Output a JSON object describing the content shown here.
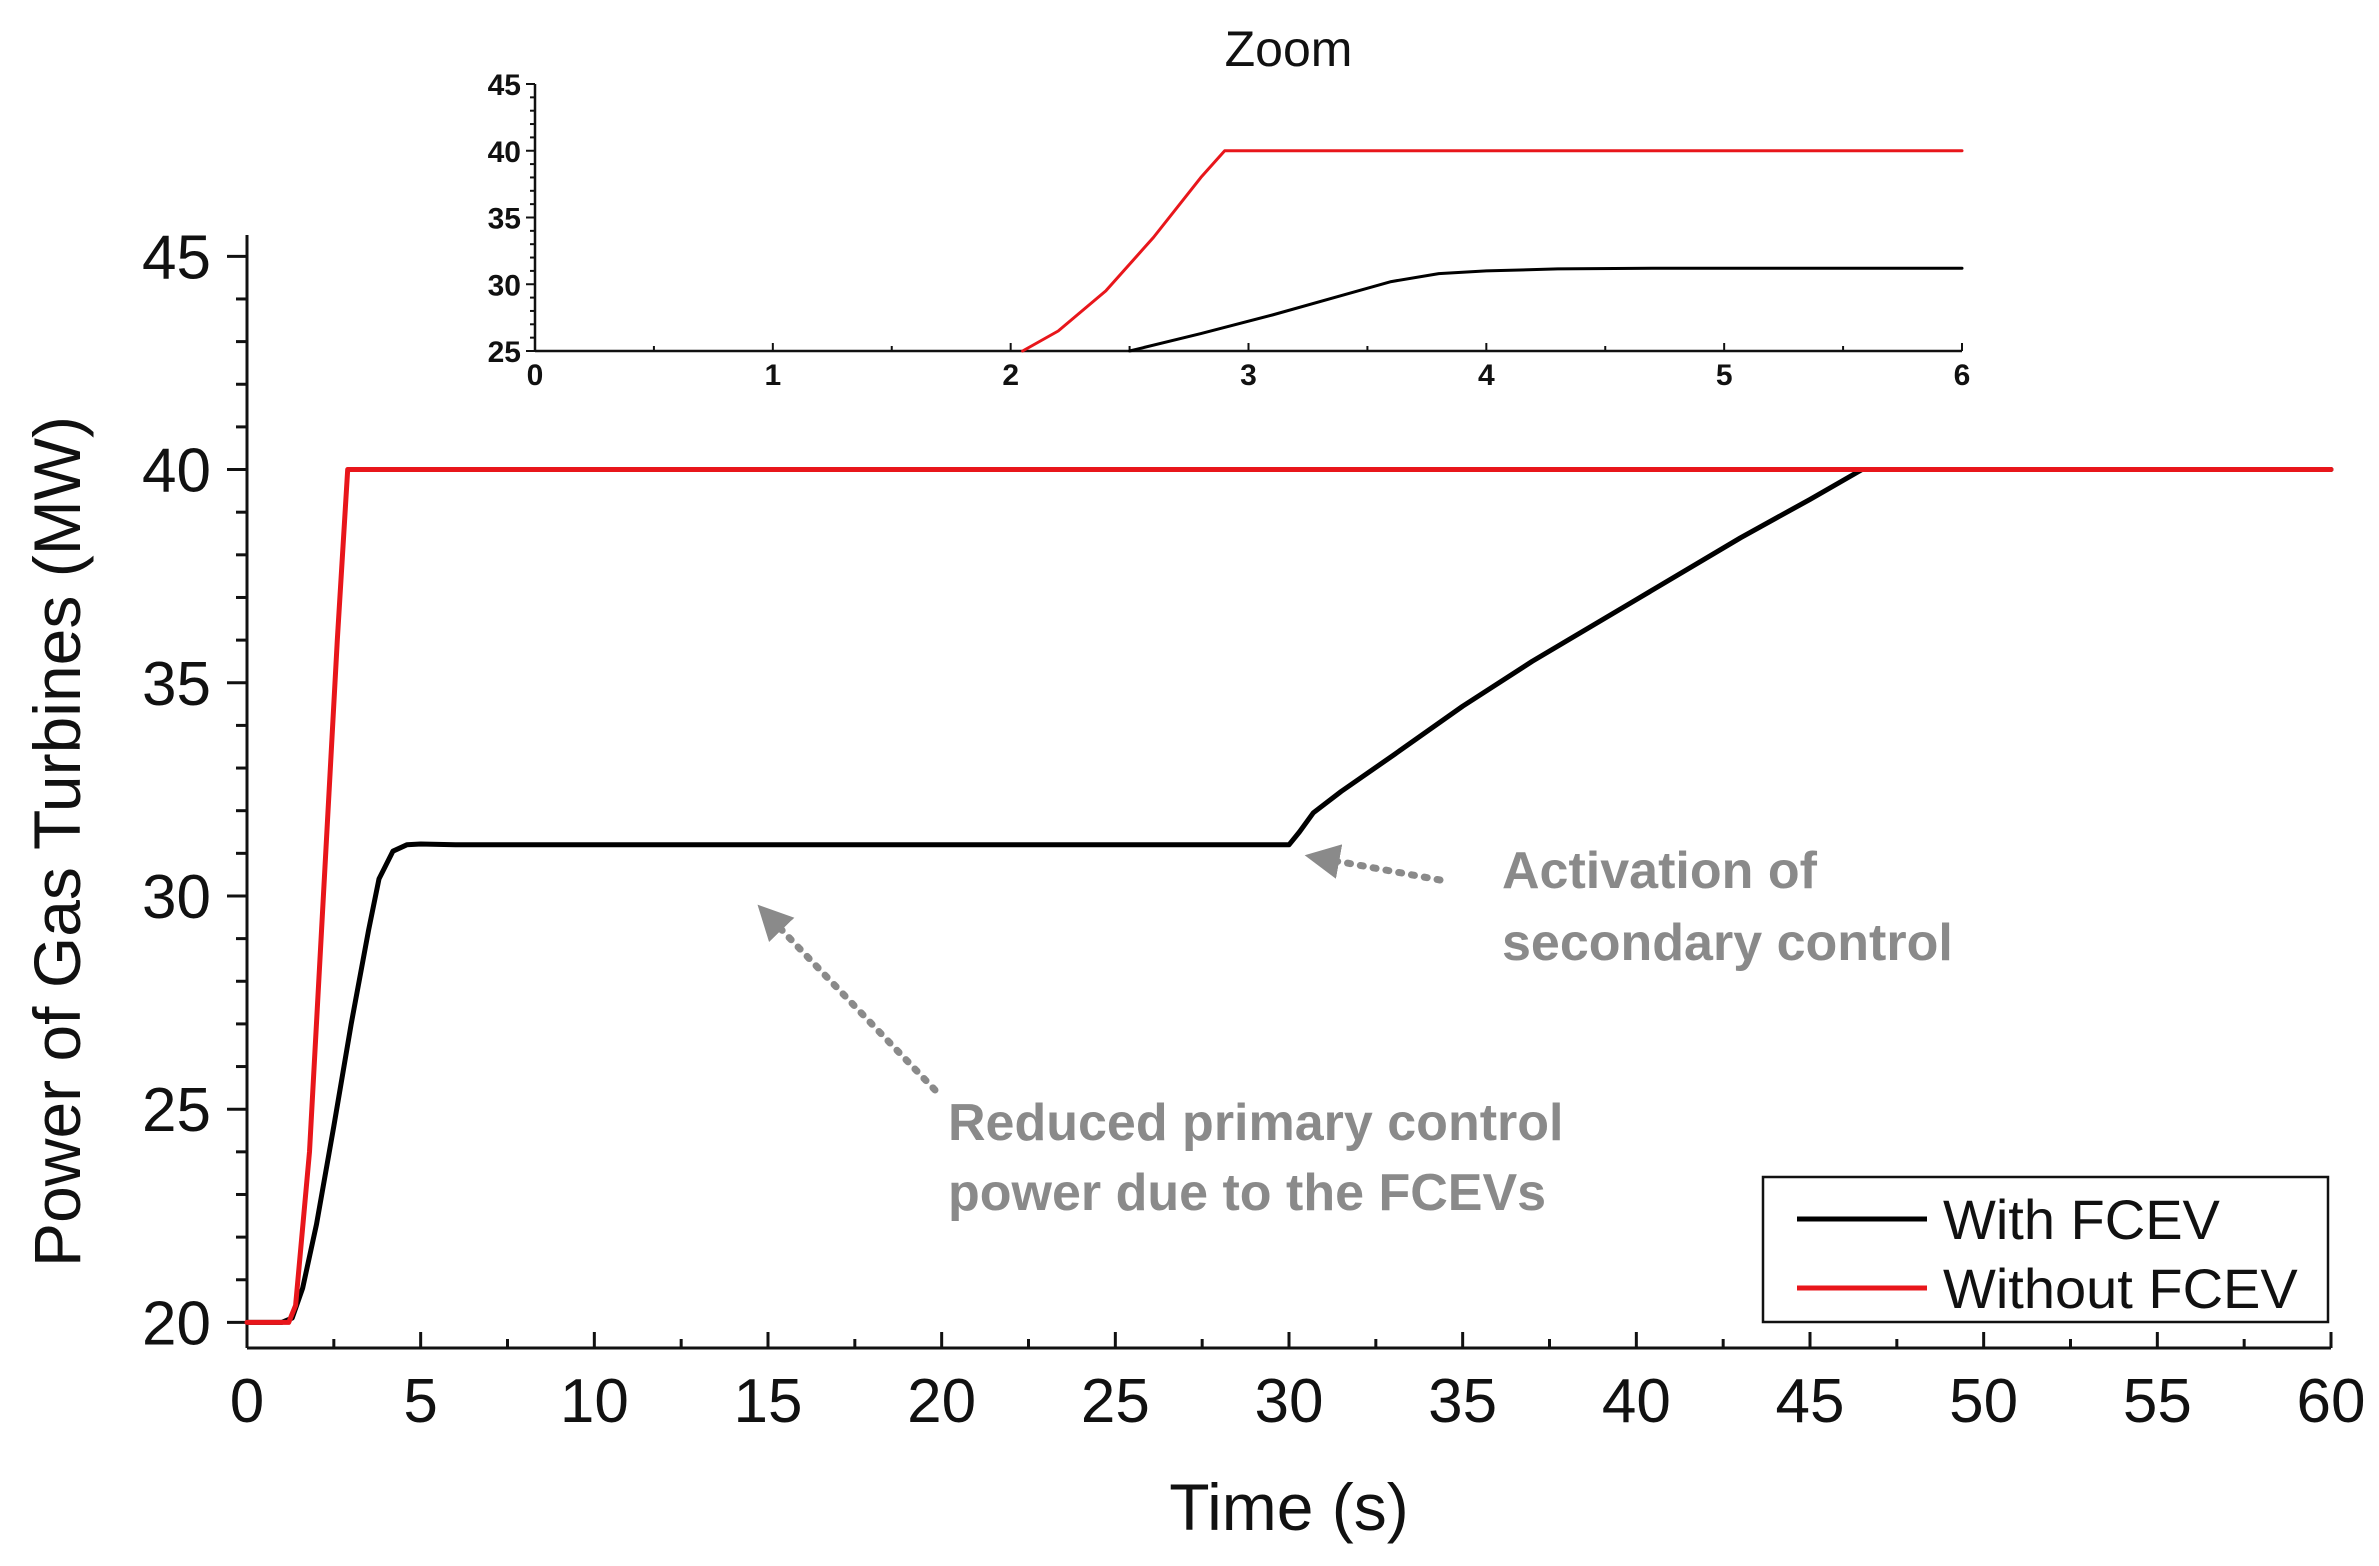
{
  "chart_data": [
    {
      "type": "line",
      "title": "",
      "xlabel": "Time (s)",
      "ylabel": "Power of Gas Turbines (MW)",
      "xlim": [
        0,
        60
      ],
      "ylim": [
        19.4,
        45.5
      ],
      "xticks": [
        0,
        5,
        10,
        15,
        20,
        25,
        30,
        35,
        40,
        45,
        50,
        55,
        60
      ],
      "yticks": [
        20,
        25,
        30,
        35,
        40,
        45
      ],
      "legend": {
        "position": "bottom-right",
        "entries": [
          "With FCEV",
          "Without FCEV"
        ]
      },
      "series": [
        {
          "name": "With FCEV",
          "color": "#000000",
          "x": [
            0,
            1.0,
            1.3,
            1.6,
            2.0,
            2.5,
            3.0,
            3.5,
            3.8,
            4.2,
            4.6,
            5.0,
            6.0,
            10,
            15,
            20,
            25,
            29,
            30.0,
            30.3,
            30.7,
            31.5,
            33,
            35,
            37,
            40,
            43,
            45,
            46.5,
            60
          ],
          "y": [
            20,
            20,
            20.1,
            20.8,
            22.3,
            24.6,
            27.0,
            29.2,
            30.4,
            31.05,
            31.2,
            31.22,
            31.2,
            31.2,
            31.2,
            31.2,
            31.2,
            31.2,
            31.2,
            31.5,
            31.95,
            32.45,
            33.3,
            34.45,
            35.5,
            36.95,
            38.4,
            39.3,
            40.0,
            40.0
          ]
        },
        {
          "name": "Without FCEV",
          "color": "#e8161b",
          "x": [
            0,
            1.2,
            1.4,
            1.8,
            2.2,
            2.6,
            2.9,
            60
          ],
          "y": [
            20,
            20,
            20.4,
            24.0,
            30.0,
            36.0,
            40.0,
            40.0
          ]
        }
      ],
      "annotations": [
        {
          "text": [
            "Activation of",
            "secondary control"
          ],
          "arrow_to": [
            30.2,
            31.2
          ]
        },
        {
          "text": [
            "Reduced primary control",
            "power due to the FCEVs"
          ],
          "arrow_to": [
            14.8,
            29.7
          ]
        }
      ]
    },
    {
      "type": "line",
      "title": "Zoom",
      "xlabel": "",
      "ylabel": "",
      "xlim": [
        0,
        6
      ],
      "ylim": [
        25,
        45
      ],
      "xticks": [
        0,
        1,
        2,
        3,
        4,
        5,
        6
      ],
      "yticks": [
        25,
        30,
        35,
        40,
        45
      ],
      "series": [
        {
          "name": "With FCEV",
          "color": "#000000",
          "x": [
            2.5,
            2.8,
            3.1,
            3.4,
            3.6,
            3.8,
            4.0,
            4.3,
            4.7,
            5.2,
            6.0
          ],
          "y": [
            25.0,
            26.3,
            27.7,
            29.2,
            30.2,
            30.8,
            31.0,
            31.15,
            31.2,
            31.2,
            31.2
          ]
        },
        {
          "name": "Without FCEV",
          "color": "#e8161b",
          "x": [
            2.05,
            2.2,
            2.4,
            2.6,
            2.8,
            2.9,
            6.0
          ],
          "y": [
            25.0,
            26.5,
            29.5,
            33.5,
            38.0,
            40.0,
            40.0
          ]
        }
      ]
    }
  ]
}
